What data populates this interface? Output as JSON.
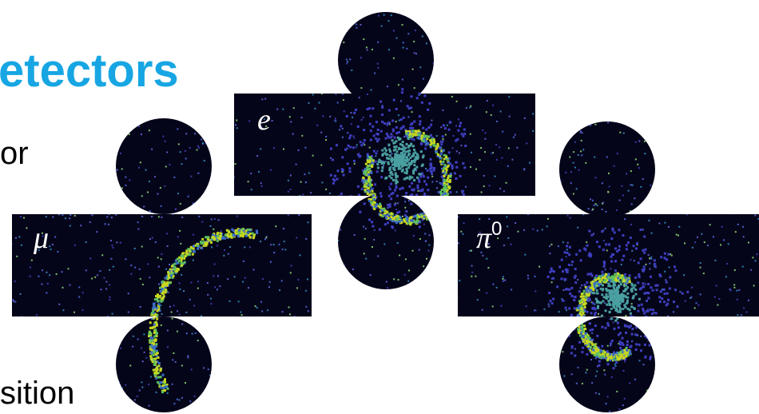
{
  "header": {
    "title": "etectors"
  },
  "body": {
    "lines": [
      "or",
      "sition"
    ]
  },
  "panels": [
    {
      "label": "e"
    },
    {
      "label": "μ"
    },
    {
      "label": "π",
      "superscript": "0"
    }
  ]
}
